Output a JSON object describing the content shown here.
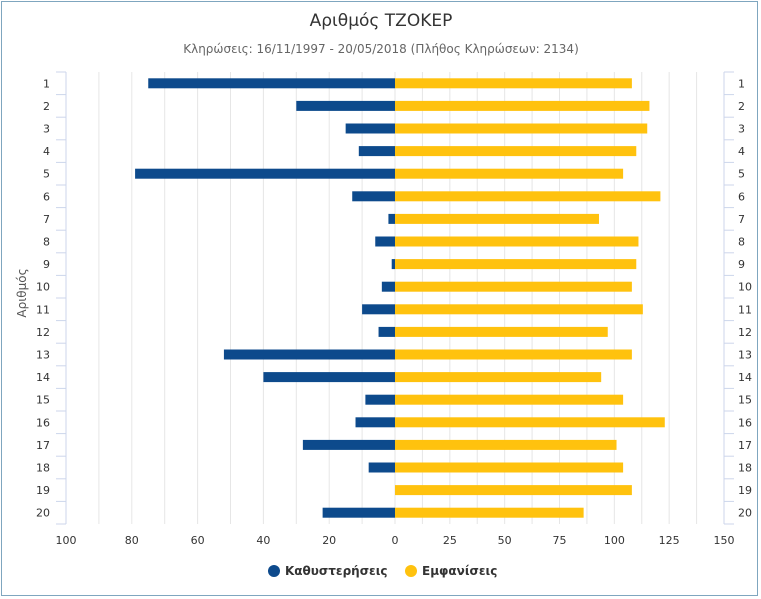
{
  "chart_data": {
    "type": "bar",
    "orientation": "horizontal",
    "title": "Αριθμός ΤΖΟΚΕΡ",
    "subtitle": "Κληρώσεις: 16/11/1997 - 20/05/2018 (Πλήθος Κληρώσεων: 2134)",
    "ylabel": "Αριθμός",
    "xlabel": "",
    "categories": [
      "1",
      "2",
      "3",
      "4",
      "5",
      "6",
      "7",
      "8",
      "9",
      "10",
      "11",
      "12",
      "13",
      "14",
      "15",
      "16",
      "17",
      "18",
      "19",
      "20"
    ],
    "series": [
      {
        "name": "Καθυστερήσεις",
        "color": "#0d4a8c",
        "direction": "left",
        "values": [
          75,
          30,
          15,
          11,
          79,
          13,
          2,
          6,
          1,
          4,
          10,
          5,
          52,
          40,
          9,
          12,
          28,
          8,
          0,
          22
        ]
      },
      {
        "name": "Εμφανίσεις",
        "color": "#ffc20e",
        "direction": "right",
        "values": [
          108,
          116,
          115,
          110,
          104,
          121,
          93,
          111,
          110,
          108,
          113,
          97,
          108,
          94,
          104,
          123,
          101,
          104,
          108,
          86
        ]
      }
    ],
    "left_axis": {
      "range": [
        0,
        100
      ],
      "ticks": [
        "100",
        "80",
        "60",
        "40",
        "20",
        "0"
      ]
    },
    "right_axis": {
      "range": [
        0,
        150
      ],
      "ticks": [
        "25",
        "50",
        "75",
        "100",
        "125",
        "150"
      ]
    },
    "grid": true,
    "legend_position": "bottom-center"
  }
}
